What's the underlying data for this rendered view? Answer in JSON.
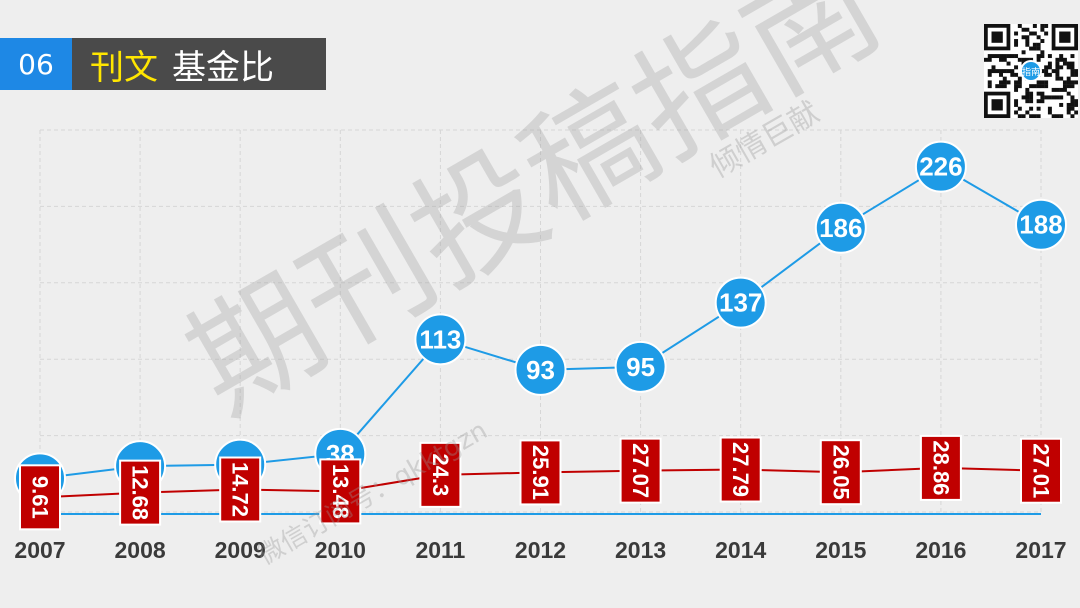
{
  "header": {
    "number": "06",
    "title_highlight": "刊文",
    "title_rest": "基金比"
  },
  "watermark": {
    "main": "期刊投稿指南",
    "corner": "倾情巨献",
    "wechat": "微信订阅号：qkktgzn"
  },
  "qr_center": "指南",
  "colors": {
    "blue": "#1e9be6",
    "red": "#c00000",
    "accent": "#1e88e5",
    "header_bg": "#4a4a4a",
    "highlight": "#ffe600"
  },
  "chart_data": {
    "type": "line",
    "categories": [
      "2007",
      "2008",
      "2009",
      "2010",
      "2011",
      "2012",
      "2013",
      "2014",
      "2015",
      "2016",
      "2017"
    ],
    "ylim": [
      0,
      250
    ],
    "grid": true,
    "series": [
      {
        "color": "#1e9be6",
        "values": [
          22,
          30,
          31,
          38,
          113,
          93,
          95,
          137,
          186,
          226,
          188
        ],
        "labels": [
          "",
          "",
          "",
          "38",
          "113",
          "93",
          "95",
          "137",
          "186",
          "226",
          "188"
        ]
      },
      {
        "color": "#c00000",
        "values": [
          9.61,
          12.68,
          14.72,
          13.48,
          24.3,
          25.91,
          27.07,
          27.79,
          26.05,
          28.86,
          27.01
        ],
        "labels": [
          "9.61",
          "12.68",
          "14.72",
          "13.48",
          "24.3",
          "25.91",
          "27.07",
          "27.79",
          "26.05",
          "28.86",
          "27.01"
        ]
      }
    ]
  }
}
